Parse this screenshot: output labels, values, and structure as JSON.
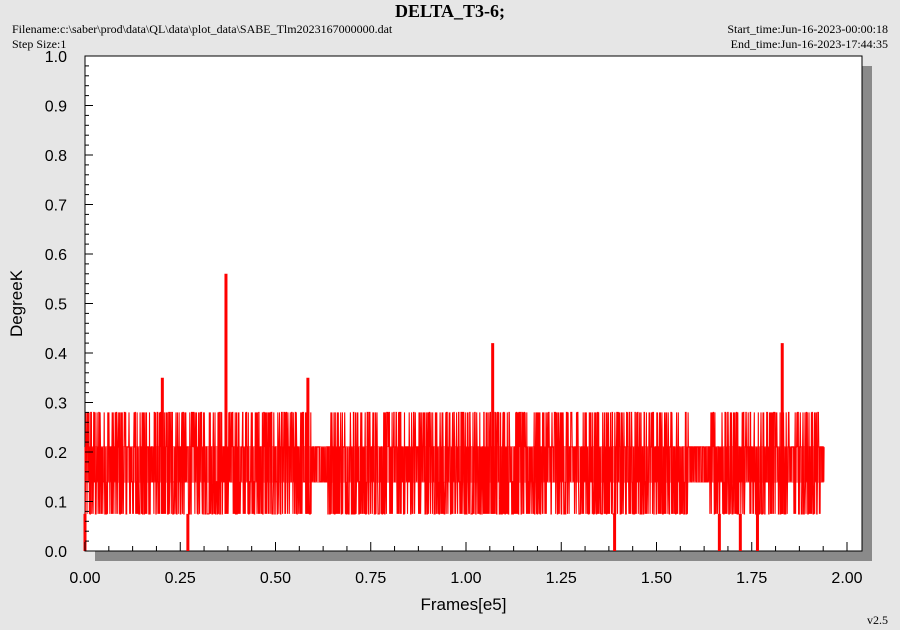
{
  "header": {
    "title": "DELTA_T3-6;",
    "filename": "Filename:c:\\saber\\prod\\data\\QL\\data\\plot_data\\SABE_Tlm2023167000000.dat",
    "step_size": "Step Size:1",
    "start_time": "Start_time:Jun-16-2023-00:00:18",
    "end_time": "End_time:Jun-16-2023-17:44:35",
    "version": "v2.5"
  },
  "colors": {
    "series": "#ff0000",
    "background": "#e6e6e6",
    "plot_background": "#ffffff",
    "shadow": "#8a8a8a"
  },
  "chart_data": {
    "type": "line",
    "title": "DELTA_T3-6;",
    "xlabel": "Frames[e5]",
    "ylabel": "DegreeK",
    "xlim": [
      0.0,
      2.0
    ],
    "ylim": [
      0.0,
      1.0
    ],
    "x_ticks": [
      "0.00",
      "0.25",
      "0.50",
      "0.75",
      "1.00",
      "1.25",
      "1.50",
      "1.75",
      "2.00"
    ],
    "y_ticks": [
      "0.0",
      "0.1",
      "0.2",
      "0.3",
      "0.4",
      "0.5",
      "0.6",
      "0.7",
      "0.8",
      "0.9",
      "1.0"
    ],
    "grid": false,
    "series": [
      {
        "color": "#ff0000",
        "x_range": [
          0.0,
          1.94
        ],
        "band_low": 0.075,
        "band_high": 0.28,
        "typical_values": [
          0.075,
          0.14,
          0.21,
          0.28
        ],
        "spikes": [
          {
            "x": 0.203,
            "y": 0.35
          },
          {
            "x": 0.37,
            "y": 0.56
          },
          {
            "x": 0.585,
            "y": 0.35
          },
          {
            "x": 1.07,
            "y": 0.42
          },
          {
            "x": 1.83,
            "y": 0.42
          }
        ],
        "dips": [
          {
            "x": 0.0,
            "y": 0.0
          },
          {
            "x": 0.27,
            "y": 0.0
          },
          {
            "x": 1.39,
            "y": 0.0
          },
          {
            "x": 1.665,
            "y": 0.0
          },
          {
            "x": 1.72,
            "y": 0.0
          },
          {
            "x": 1.765,
            "y": 0.0
          }
        ],
        "gaps": [
          [
            0.595,
            0.635
          ],
          [
            1.585,
            1.64
          ],
          [
            1.85,
            1.86
          ],
          [
            1.93,
            1.94
          ]
        ]
      }
    ]
  }
}
